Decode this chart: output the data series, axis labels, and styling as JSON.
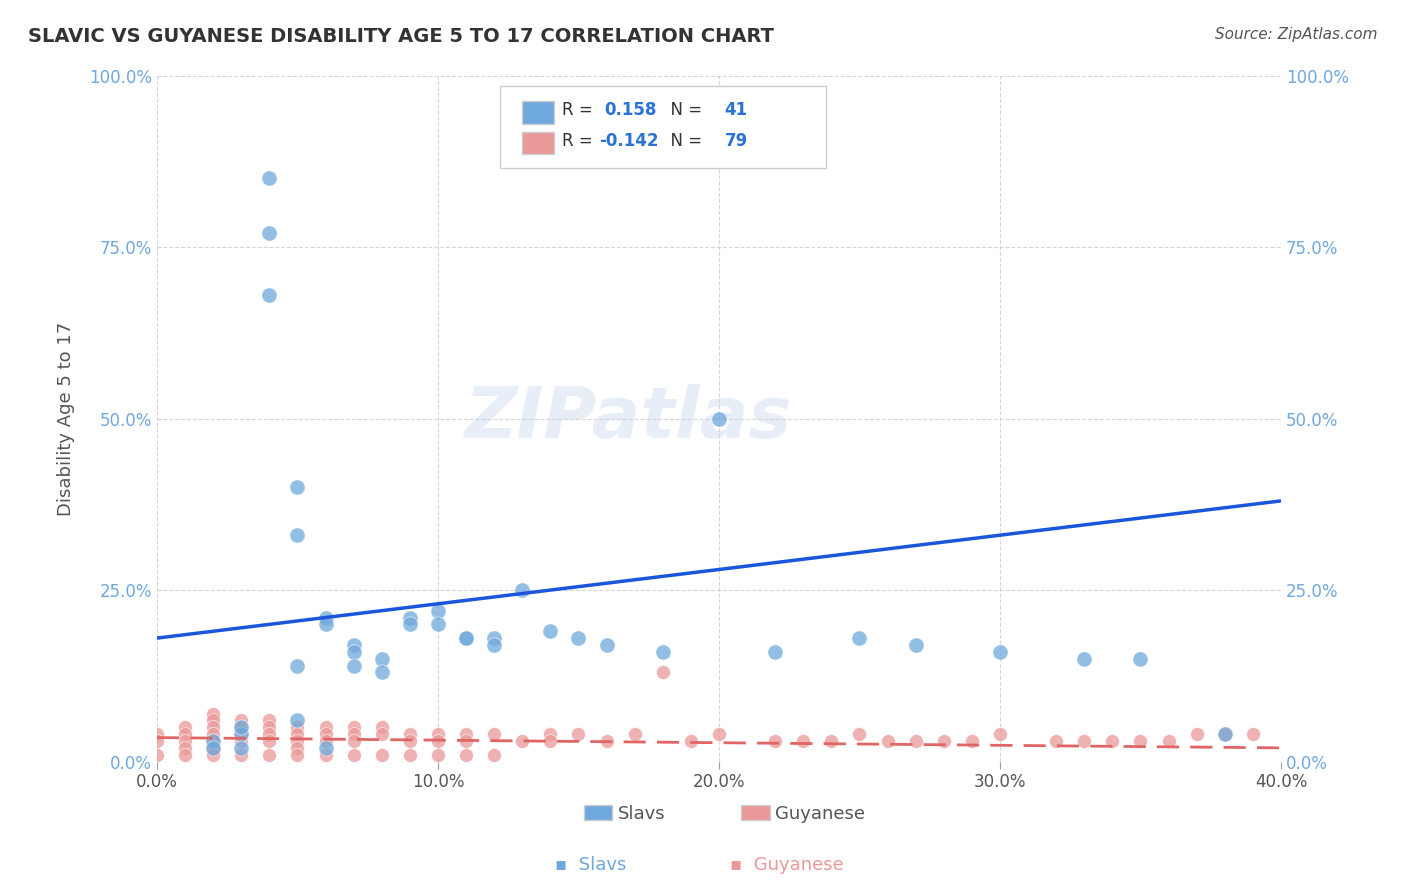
{
  "title": "SLAVIC VS GUYANESE DISABILITY AGE 5 TO 17 CORRELATION CHART",
  "source": "Source: ZipAtlas.com",
  "xlabel_label": "",
  "ylabel_label": "Disability Age 5 to 17",
  "x_tick_labels": [
    "0.0%",
    "10.0%",
    "20.0%",
    "30.0%",
    "40.0%"
  ],
  "x_tick_values": [
    0.0,
    0.1,
    0.2,
    0.3,
    0.4
  ],
  "y_tick_labels": [
    "0.0%",
    "25.0%",
    "50.0%",
    "75.0%",
    "100.0%"
  ],
  "y_tick_values": [
    0.0,
    0.25,
    0.5,
    0.75,
    1.0
  ],
  "xlim": [
    0.0,
    0.4
  ],
  "ylim": [
    0.0,
    1.0
  ],
  "slavic_R": 0.158,
  "slavic_N": 41,
  "guyanese_R": -0.142,
  "guyanese_N": 79,
  "slavic_color": "#6fa8dc",
  "guyanese_color": "#ea9999",
  "trendline_slavic_color": "#1a56db",
  "trendline_guyanese_color": "#e06666",
  "background_color": "#ffffff",
  "grid_color": "#cccccc",
  "slavic_points_x": [
    0.02,
    0.03,
    0.03,
    0.04,
    0.04,
    0.04,
    0.05,
    0.05,
    0.05,
    0.05,
    0.06,
    0.06,
    0.07,
    0.07,
    0.07,
    0.08,
    0.08,
    0.09,
    0.09,
    0.1,
    0.1,
    0.11,
    0.11,
    0.12,
    0.12,
    0.13,
    0.14,
    0.15,
    0.16,
    0.18,
    0.2,
    0.22,
    0.25,
    0.27,
    0.3,
    0.33,
    0.35,
    0.02,
    0.03,
    0.06,
    0.38
  ],
  "slavic_points_y": [
    0.03,
    0.04,
    0.05,
    0.85,
    0.77,
    0.68,
    0.4,
    0.33,
    0.14,
    0.06,
    0.21,
    0.2,
    0.17,
    0.16,
    0.14,
    0.15,
    0.13,
    0.21,
    0.2,
    0.22,
    0.2,
    0.18,
    0.18,
    0.18,
    0.17,
    0.25,
    0.19,
    0.18,
    0.17,
    0.16,
    0.5,
    0.16,
    0.18,
    0.17,
    0.16,
    0.15,
    0.15,
    0.02,
    0.02,
    0.02,
    0.04
  ],
  "guyanese_points_x": [
    0.0,
    0.0,
    0.01,
    0.01,
    0.01,
    0.01,
    0.02,
    0.02,
    0.02,
    0.02,
    0.02,
    0.02,
    0.02,
    0.03,
    0.03,
    0.03,
    0.03,
    0.04,
    0.04,
    0.04,
    0.04,
    0.05,
    0.05,
    0.05,
    0.05,
    0.06,
    0.06,
    0.06,
    0.07,
    0.07,
    0.07,
    0.08,
    0.08,
    0.09,
    0.09,
    0.1,
    0.1,
    0.11,
    0.11,
    0.12,
    0.13,
    0.14,
    0.14,
    0.15,
    0.16,
    0.17,
    0.18,
    0.19,
    0.2,
    0.22,
    0.23,
    0.24,
    0.25,
    0.26,
    0.27,
    0.28,
    0.29,
    0.3,
    0.32,
    0.33,
    0.34,
    0.35,
    0.36,
    0.0,
    0.01,
    0.02,
    0.03,
    0.04,
    0.05,
    0.06,
    0.07,
    0.08,
    0.09,
    0.1,
    0.11,
    0.12,
    0.37,
    0.38,
    0.39
  ],
  "guyanese_points_y": [
    0.04,
    0.03,
    0.05,
    0.04,
    0.03,
    0.02,
    0.07,
    0.06,
    0.05,
    0.04,
    0.03,
    0.02,
    0.02,
    0.06,
    0.05,
    0.04,
    0.03,
    0.06,
    0.05,
    0.04,
    0.03,
    0.05,
    0.04,
    0.03,
    0.02,
    0.05,
    0.04,
    0.03,
    0.05,
    0.04,
    0.03,
    0.05,
    0.04,
    0.04,
    0.03,
    0.04,
    0.03,
    0.04,
    0.03,
    0.04,
    0.03,
    0.04,
    0.03,
    0.04,
    0.03,
    0.04,
    0.13,
    0.03,
    0.04,
    0.03,
    0.03,
    0.03,
    0.04,
    0.03,
    0.03,
    0.03,
    0.03,
    0.04,
    0.03,
    0.03,
    0.03,
    0.03,
    0.03,
    0.01,
    0.01,
    0.01,
    0.01,
    0.01,
    0.01,
    0.01,
    0.01,
    0.01,
    0.01,
    0.01,
    0.01,
    0.01,
    0.04,
    0.04,
    0.04
  ],
  "watermark_text": "ZIPatlas",
  "legend_slavic_label": "Slavs",
  "legend_guyanese_label": "Guyanese"
}
